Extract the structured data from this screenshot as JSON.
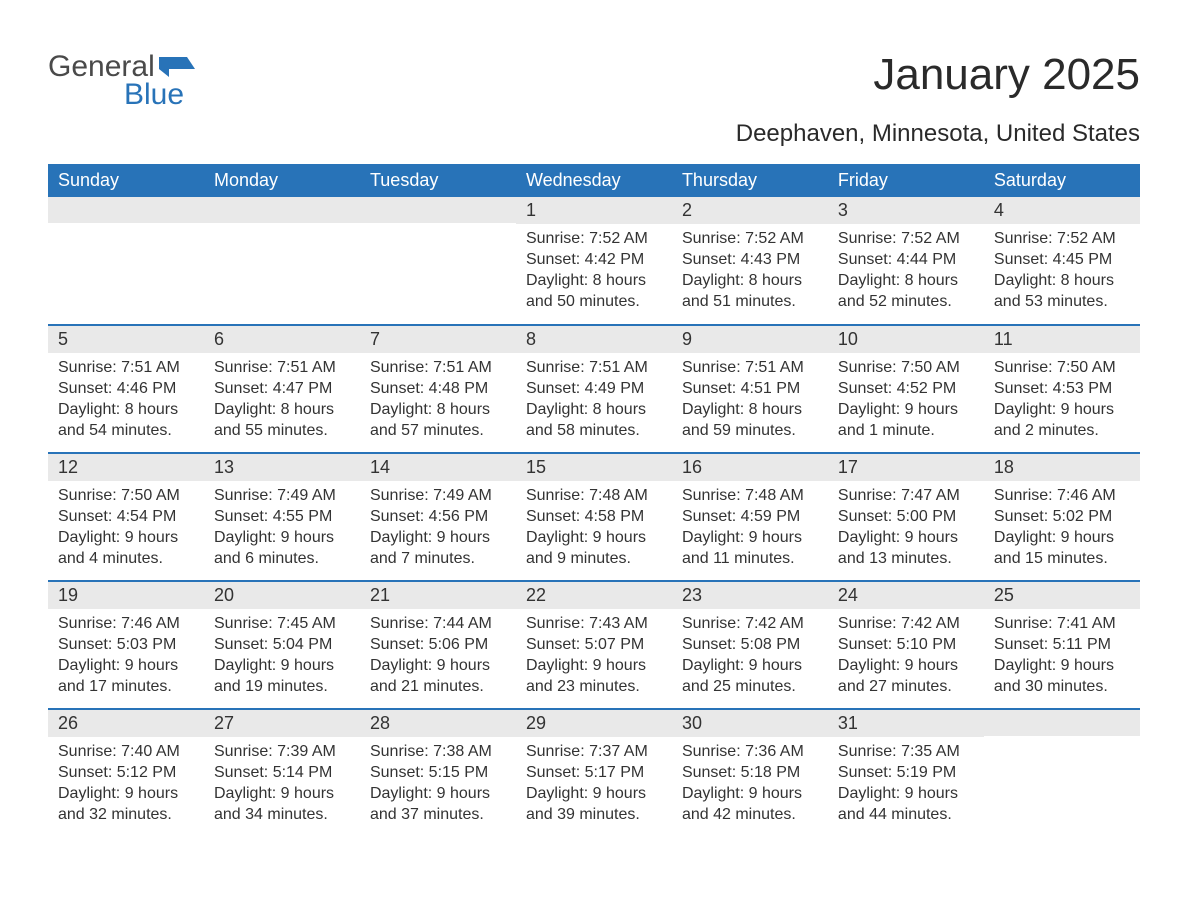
{
  "logo": {
    "text1": "General",
    "text2": "Blue",
    "flag_color": "#2873b8",
    "text1_color": "#4a4a4a"
  },
  "title": "January 2025",
  "subtitle": "Deephaven, Minnesota, United States",
  "colors": {
    "header_bg": "#2873b8",
    "header_text": "#ffffff",
    "daynum_bg": "#e9e9e9",
    "body_text": "#333333",
    "row_divider": "#2873b8",
    "page_bg": "#ffffff"
  },
  "day_headers": [
    "Sunday",
    "Monday",
    "Tuesday",
    "Wednesday",
    "Thursday",
    "Friday",
    "Saturday"
  ],
  "weeks": [
    [
      {
        "day": "",
        "sunrise": "",
        "sunset": "",
        "daylight": ""
      },
      {
        "day": "",
        "sunrise": "",
        "sunset": "",
        "daylight": ""
      },
      {
        "day": "",
        "sunrise": "",
        "sunset": "",
        "daylight": ""
      },
      {
        "day": "1",
        "sunrise": "Sunrise: 7:52 AM",
        "sunset": "Sunset: 4:42 PM",
        "daylight": "Daylight: 8 hours and 50 minutes."
      },
      {
        "day": "2",
        "sunrise": "Sunrise: 7:52 AM",
        "sunset": "Sunset: 4:43 PM",
        "daylight": "Daylight: 8 hours and 51 minutes."
      },
      {
        "day": "3",
        "sunrise": "Sunrise: 7:52 AM",
        "sunset": "Sunset: 4:44 PM",
        "daylight": "Daylight: 8 hours and 52 minutes."
      },
      {
        "day": "4",
        "sunrise": "Sunrise: 7:52 AM",
        "sunset": "Sunset: 4:45 PM",
        "daylight": "Daylight: 8 hours and 53 minutes."
      }
    ],
    [
      {
        "day": "5",
        "sunrise": "Sunrise: 7:51 AM",
        "sunset": "Sunset: 4:46 PM",
        "daylight": "Daylight: 8 hours and 54 minutes."
      },
      {
        "day": "6",
        "sunrise": "Sunrise: 7:51 AM",
        "sunset": "Sunset: 4:47 PM",
        "daylight": "Daylight: 8 hours and 55 minutes."
      },
      {
        "day": "7",
        "sunrise": "Sunrise: 7:51 AM",
        "sunset": "Sunset: 4:48 PM",
        "daylight": "Daylight: 8 hours and 57 minutes."
      },
      {
        "day": "8",
        "sunrise": "Sunrise: 7:51 AM",
        "sunset": "Sunset: 4:49 PM",
        "daylight": "Daylight: 8 hours and 58 minutes."
      },
      {
        "day": "9",
        "sunrise": "Sunrise: 7:51 AM",
        "sunset": "Sunset: 4:51 PM",
        "daylight": "Daylight: 8 hours and 59 minutes."
      },
      {
        "day": "10",
        "sunrise": "Sunrise: 7:50 AM",
        "sunset": "Sunset: 4:52 PM",
        "daylight": "Daylight: 9 hours and 1 minute."
      },
      {
        "day": "11",
        "sunrise": "Sunrise: 7:50 AM",
        "sunset": "Sunset: 4:53 PM",
        "daylight": "Daylight: 9 hours and 2 minutes."
      }
    ],
    [
      {
        "day": "12",
        "sunrise": "Sunrise: 7:50 AM",
        "sunset": "Sunset: 4:54 PM",
        "daylight": "Daylight: 9 hours and 4 minutes."
      },
      {
        "day": "13",
        "sunrise": "Sunrise: 7:49 AM",
        "sunset": "Sunset: 4:55 PM",
        "daylight": "Daylight: 9 hours and 6 minutes."
      },
      {
        "day": "14",
        "sunrise": "Sunrise: 7:49 AM",
        "sunset": "Sunset: 4:56 PM",
        "daylight": "Daylight: 9 hours and 7 minutes."
      },
      {
        "day": "15",
        "sunrise": "Sunrise: 7:48 AM",
        "sunset": "Sunset: 4:58 PM",
        "daylight": "Daylight: 9 hours and 9 minutes."
      },
      {
        "day": "16",
        "sunrise": "Sunrise: 7:48 AM",
        "sunset": "Sunset: 4:59 PM",
        "daylight": "Daylight: 9 hours and 11 minutes."
      },
      {
        "day": "17",
        "sunrise": "Sunrise: 7:47 AM",
        "sunset": "Sunset: 5:00 PM",
        "daylight": "Daylight: 9 hours and 13 minutes."
      },
      {
        "day": "18",
        "sunrise": "Sunrise: 7:46 AM",
        "sunset": "Sunset: 5:02 PM",
        "daylight": "Daylight: 9 hours and 15 minutes."
      }
    ],
    [
      {
        "day": "19",
        "sunrise": "Sunrise: 7:46 AM",
        "sunset": "Sunset: 5:03 PM",
        "daylight": "Daylight: 9 hours and 17 minutes."
      },
      {
        "day": "20",
        "sunrise": "Sunrise: 7:45 AM",
        "sunset": "Sunset: 5:04 PM",
        "daylight": "Daylight: 9 hours and 19 minutes."
      },
      {
        "day": "21",
        "sunrise": "Sunrise: 7:44 AM",
        "sunset": "Sunset: 5:06 PM",
        "daylight": "Daylight: 9 hours and 21 minutes."
      },
      {
        "day": "22",
        "sunrise": "Sunrise: 7:43 AM",
        "sunset": "Sunset: 5:07 PM",
        "daylight": "Daylight: 9 hours and 23 minutes."
      },
      {
        "day": "23",
        "sunrise": "Sunrise: 7:42 AM",
        "sunset": "Sunset: 5:08 PM",
        "daylight": "Daylight: 9 hours and 25 minutes."
      },
      {
        "day": "24",
        "sunrise": "Sunrise: 7:42 AM",
        "sunset": "Sunset: 5:10 PM",
        "daylight": "Daylight: 9 hours and 27 minutes."
      },
      {
        "day": "25",
        "sunrise": "Sunrise: 7:41 AM",
        "sunset": "Sunset: 5:11 PM",
        "daylight": "Daylight: 9 hours and 30 minutes."
      }
    ],
    [
      {
        "day": "26",
        "sunrise": "Sunrise: 7:40 AM",
        "sunset": "Sunset: 5:12 PM",
        "daylight": "Daylight: 9 hours and 32 minutes."
      },
      {
        "day": "27",
        "sunrise": "Sunrise: 7:39 AM",
        "sunset": "Sunset: 5:14 PM",
        "daylight": "Daylight: 9 hours and 34 minutes."
      },
      {
        "day": "28",
        "sunrise": "Sunrise: 7:38 AM",
        "sunset": "Sunset: 5:15 PM",
        "daylight": "Daylight: 9 hours and 37 minutes."
      },
      {
        "day": "29",
        "sunrise": "Sunrise: 7:37 AM",
        "sunset": "Sunset: 5:17 PM",
        "daylight": "Daylight: 9 hours and 39 minutes."
      },
      {
        "day": "30",
        "sunrise": "Sunrise: 7:36 AM",
        "sunset": "Sunset: 5:18 PM",
        "daylight": "Daylight: 9 hours and 42 minutes."
      },
      {
        "day": "31",
        "sunrise": "Sunrise: 7:35 AM",
        "sunset": "Sunset: 5:19 PM",
        "daylight": "Daylight: 9 hours and 44 minutes."
      },
      {
        "day": "",
        "sunrise": "",
        "sunset": "",
        "daylight": ""
      }
    ]
  ]
}
